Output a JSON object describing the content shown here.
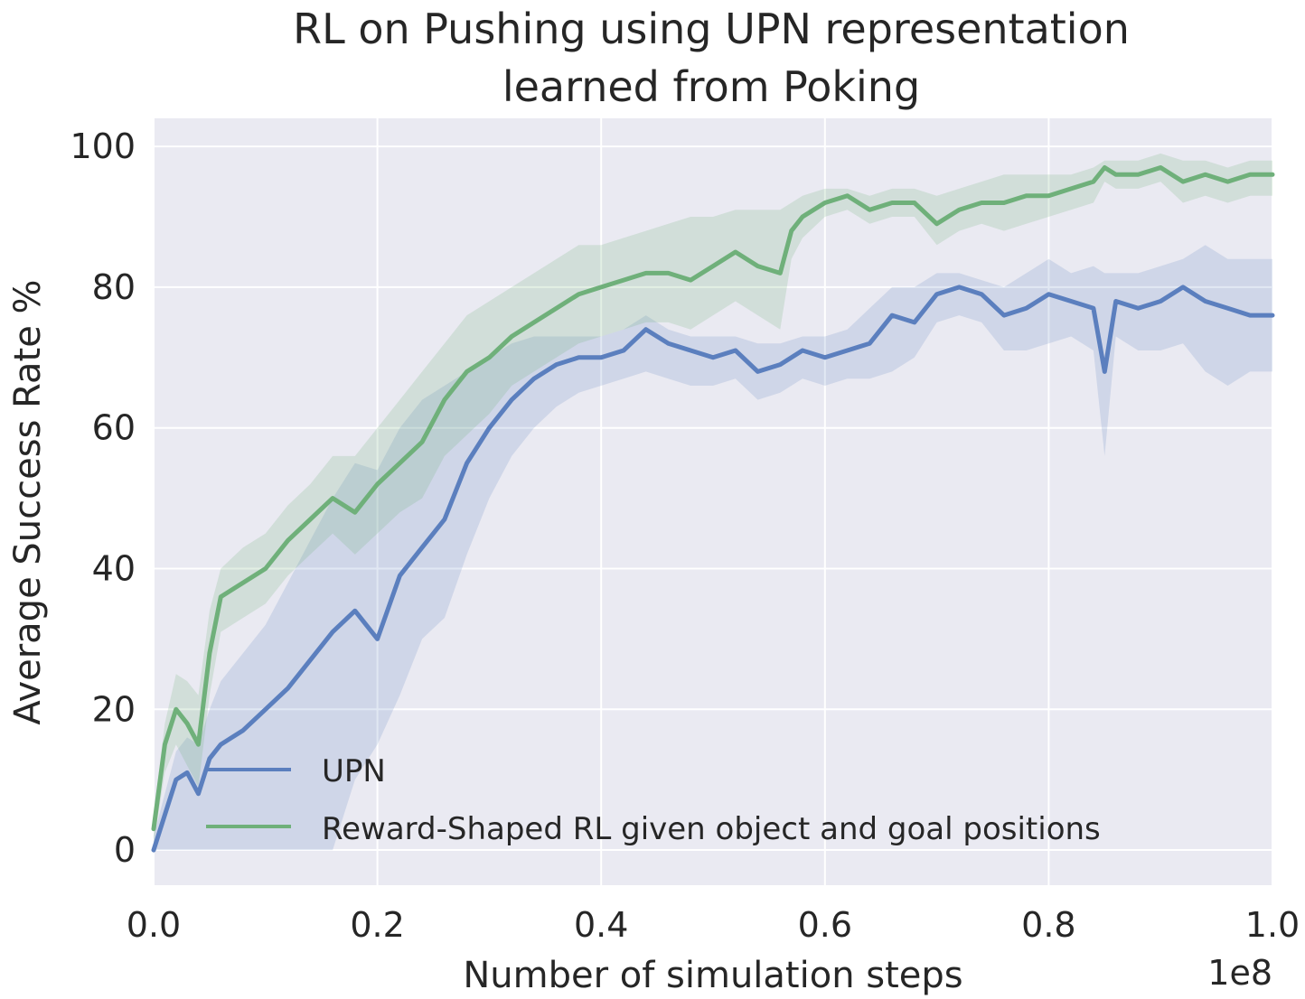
{
  "chart_data": {
    "type": "line",
    "title_lines": [
      "RL on Pushing using UPN representation",
      "learned from Poking"
    ],
    "xlabel": "Number of simulation steps",
    "ylabel": "Average Success Rate %",
    "x_offset_label": "1e8",
    "xlim": [
      0.0,
      1.0
    ],
    "ylim": [
      -5,
      104
    ],
    "x_ticks": [
      "0.0",
      "0.2",
      "0.4",
      "0.6",
      "0.8",
      "1.0"
    ],
    "y_ticks": [
      "0",
      "20",
      "40",
      "60",
      "80",
      "100"
    ],
    "grid": true,
    "legend_position": "lower-left",
    "series": [
      {
        "name": "UPN",
        "color": "#5b7fbe",
        "x": [
          0.0,
          0.01,
          0.02,
          0.03,
          0.04,
          0.05,
          0.06,
          0.08,
          0.1,
          0.12,
          0.14,
          0.16,
          0.18,
          0.2,
          0.22,
          0.24,
          0.26,
          0.28,
          0.3,
          0.32,
          0.34,
          0.36,
          0.38,
          0.4,
          0.42,
          0.44,
          0.46,
          0.48,
          0.5,
          0.52,
          0.54,
          0.56,
          0.58,
          0.6,
          0.62,
          0.64,
          0.66,
          0.68,
          0.7,
          0.72,
          0.74,
          0.76,
          0.78,
          0.8,
          0.82,
          0.84,
          0.85,
          0.86,
          0.88,
          0.9,
          0.92,
          0.94,
          0.96,
          0.98,
          1.0
        ],
        "y": [
          0,
          5,
          10,
          11,
          8,
          13,
          15,
          17,
          20,
          23,
          27,
          31,
          34,
          30,
          39,
          43,
          47,
          55,
          60,
          64,
          67,
          69,
          70,
          70,
          71,
          74,
          72,
          71,
          70,
          71,
          68,
          69,
          71,
          70,
          71,
          72,
          76,
          75,
          79,
          80,
          79,
          76,
          77,
          79,
          78,
          77,
          68,
          78,
          77,
          78,
          80,
          78,
          77,
          76,
          76
        ],
        "band_upper": [
          2,
          8,
          14,
          16,
          15,
          20,
          24,
          28,
          32,
          38,
          44,
          50,
          55,
          54,
          60,
          64,
          66,
          68,
          70,
          72,
          73,
          73,
          73,
          73,
          74,
          76,
          74,
          73,
          73,
          73,
          72,
          72,
          73,
          73,
          74,
          77,
          80,
          80,
          82,
          82,
          81,
          80,
          82,
          84,
          82,
          83,
          82,
          82,
          82,
          83,
          84,
          86,
          84,
          84,
          84
        ],
        "band_lower": [
          0,
          0,
          0,
          0,
          0,
          0,
          0,
          0,
          0,
          0,
          0,
          0,
          10,
          15,
          22,
          30,
          33,
          42,
          50,
          56,
          60,
          63,
          65,
          66,
          67,
          68,
          67,
          66,
          66,
          67,
          64,
          65,
          67,
          66,
          67,
          67,
          68,
          70,
          75,
          76,
          75,
          71,
          71,
          72,
          73,
          71,
          56,
          73,
          71,
          71,
          72,
          68,
          66,
          68,
          68
        ]
      },
      {
        "name": "Reward-Shaped RL given object and goal positions",
        "color": "#6fb07a",
        "x": [
          0.0,
          0.01,
          0.02,
          0.03,
          0.04,
          0.05,
          0.06,
          0.08,
          0.1,
          0.12,
          0.14,
          0.16,
          0.18,
          0.2,
          0.22,
          0.24,
          0.26,
          0.28,
          0.3,
          0.32,
          0.34,
          0.36,
          0.38,
          0.4,
          0.42,
          0.44,
          0.46,
          0.48,
          0.5,
          0.52,
          0.54,
          0.56,
          0.57,
          0.58,
          0.6,
          0.62,
          0.64,
          0.66,
          0.68,
          0.7,
          0.72,
          0.74,
          0.76,
          0.78,
          0.8,
          0.82,
          0.84,
          0.85,
          0.86,
          0.88,
          0.9,
          0.92,
          0.94,
          0.96,
          0.98,
          1.0
        ],
        "y": [
          3,
          15,
          20,
          18,
          15,
          28,
          36,
          38,
          40,
          44,
          47,
          50,
          48,
          52,
          55,
          58,
          64,
          68,
          70,
          73,
          75,
          77,
          79,
          80,
          81,
          82,
          82,
          81,
          83,
          85,
          83,
          82,
          88,
          90,
          92,
          93,
          91,
          92,
          92,
          89,
          91,
          92,
          92,
          93,
          93,
          94,
          95,
          97,
          96,
          96,
          97,
          95,
          96,
          95,
          96,
          96
        ],
        "band_upper": [
          5,
          18,
          25,
          24,
          22,
          34,
          40,
          43,
          45,
          49,
          52,
          56,
          56,
          60,
          64,
          68,
          72,
          76,
          78,
          80,
          82,
          84,
          86,
          86,
          87,
          88,
          89,
          90,
          90,
          91,
          91,
          91,
          92,
          93,
          94,
          94,
          93,
          94,
          94,
          93,
          94,
          95,
          96,
          96,
          96,
          96,
          97,
          98,
          98,
          98,
          99,
          98,
          98,
          97,
          98,
          98
        ],
        "band_lower": [
          1,
          11,
          15,
          12,
          9,
          22,
          31,
          33,
          35,
          39,
          42,
          45,
          42,
          45,
          48,
          50,
          56,
          59,
          62,
          66,
          68,
          70,
          72,
          73,
          74,
          75,
          75,
          74,
          76,
          78,
          76,
          74,
          84,
          87,
          90,
          91,
          89,
          90,
          90,
          86,
          88,
          89,
          88,
          89,
          90,
          91,
          92,
          95,
          94,
          94,
          95,
          92,
          93,
          92,
          93,
          93
        ]
      }
    ]
  }
}
